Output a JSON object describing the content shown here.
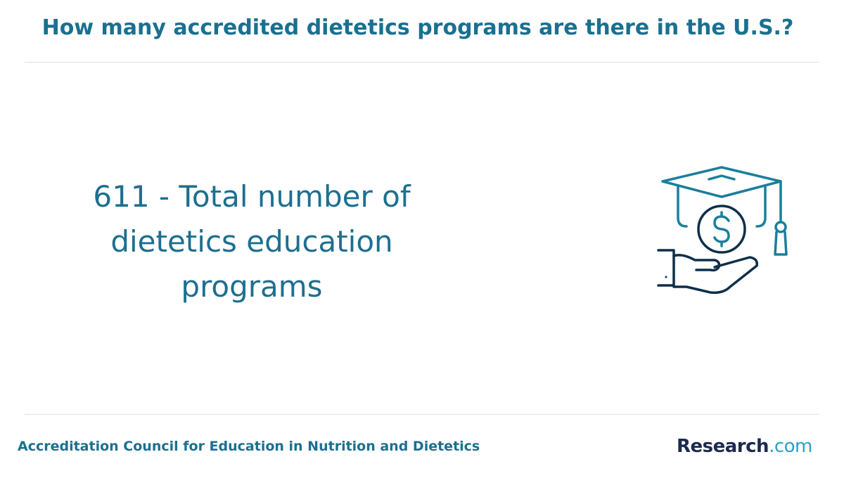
{
  "header": {
    "title": "How many accredited dietetics programs are there in the U.S.?"
  },
  "body": {
    "statement": "611 - Total number of dietetics education programs"
  },
  "footer": {
    "source": "Accreditation Council for Education in Nutrition and Dietetics",
    "logo": [
      "Research",
      ".com"
    ]
  }
}
